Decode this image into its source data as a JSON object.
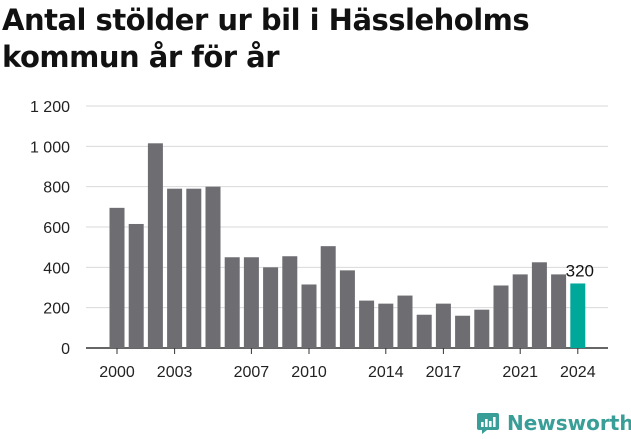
{
  "title": "Antal stölder ur bil i Hässleholms kommun år för år",
  "brand": {
    "name": "Newsworthy",
    "logo_icon": "newsworthy-chart-logo-icon",
    "color": "#3a9e98"
  },
  "chart_data": {
    "type": "bar",
    "title": "Antal stölder ur bil i Hässleholms kommun år för år",
    "xlabel": "",
    "ylabel": "",
    "categories": [
      "2000",
      "2001",
      "2002",
      "2003",
      "2004",
      "2005",
      "2006",
      "2007",
      "2008",
      "2009",
      "2010",
      "2011",
      "2012",
      "2013",
      "2014",
      "2015",
      "2016",
      "2017",
      "2018",
      "2019",
      "2020",
      "2021",
      "2022",
      "2023",
      "2024"
    ],
    "values": [
      695,
      615,
      1015,
      790,
      790,
      800,
      450,
      450,
      400,
      455,
      315,
      505,
      385,
      235,
      220,
      260,
      165,
      220,
      160,
      190,
      310,
      365,
      425,
      365,
      320
    ],
    "x_tick_labels": [
      "2000",
      "2003",
      "2007",
      "2010",
      "2014",
      "2017",
      "2021",
      "2024"
    ],
    "y_tick_labels": [
      "0",
      "200",
      "400",
      "600",
      "800",
      "1 000",
      "1 200"
    ],
    "ylim": [
      0,
      1200
    ],
    "grid": true,
    "bar_color": "#6e6d72",
    "highlight_color": "#00a89a",
    "highlight": {
      "category": "2024",
      "label": "320"
    }
  }
}
